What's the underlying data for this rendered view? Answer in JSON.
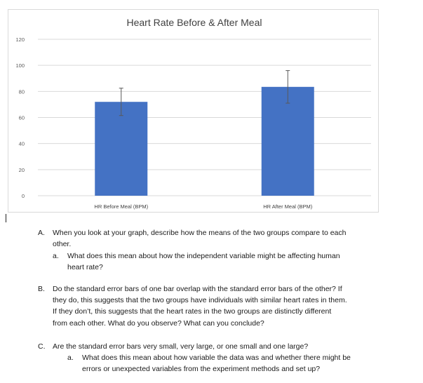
{
  "chart_data": {
    "type": "bar",
    "title": "Heart Rate Before & After Meal",
    "categories": [
      "HR Before Meal (BPM)",
      "HR After Meal (BPM)"
    ],
    "values": [
      72,
      83.5
    ],
    "error": [
      10.5,
      12.5
    ],
    "ylim": [
      0,
      120
    ],
    "yticks": [
      0,
      20,
      40,
      60,
      80,
      100,
      120
    ],
    "grid": true,
    "bar_color": "#4472C4",
    "grid_color": "#d9d9d9",
    "error_bar_color": "#595959"
  },
  "questions": {
    "A": {
      "marker": "A.",
      "lines": [
        "When you look at your graph, describe how the means of the two groups compare to each",
        "other."
      ],
      "sub": {
        "marker": "a.",
        "lines": [
          "What does this mean about how the independent variable might be affecting human",
          "heart rate?"
        ]
      }
    },
    "B": {
      "marker": "B.",
      "lines": [
        "Do the standard error bars of one bar overlap with the standard error bars of the other? If",
        "they do, this suggests that the two groups have individuals with similar heart rates in them.",
        "If they don’t, this suggests that the heart rates in the two groups are distinctly different",
        "from each other. What do you observe? What can you conclude?"
      ]
    },
    "C": {
      "marker": "C.",
      "lines": [
        "Are the standard error bars very small, very large, or one small and one large?"
      ],
      "sub": {
        "marker": "a.",
        "lines": [
          "What does this mean about how variable the data was and whether there might be",
          "errors or unexpected variables from the experiment methods and set up?"
        ]
      }
    }
  }
}
